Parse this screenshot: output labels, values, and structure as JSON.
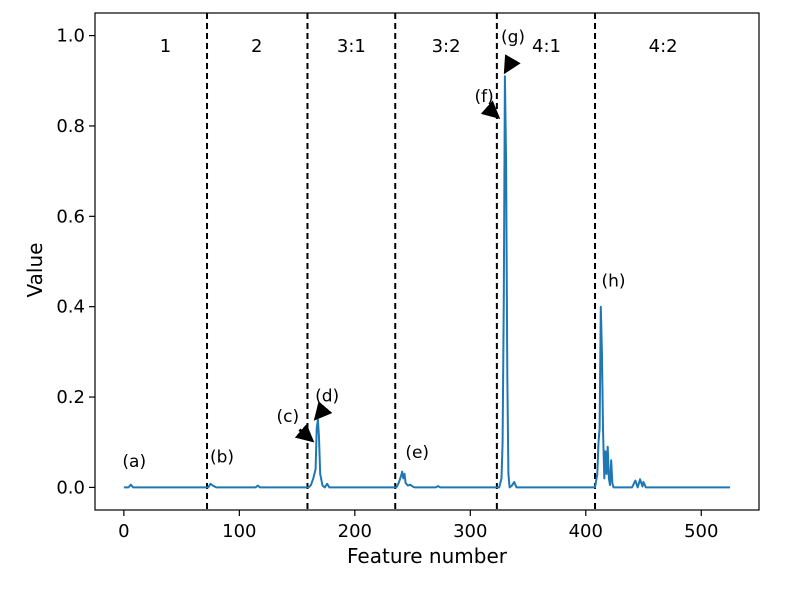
{
  "chart_data": {
    "type": "line",
    "title": "",
    "xlabel": "Feature number",
    "ylabel": "Value",
    "xlim": [
      -25,
      550
    ],
    "ylim": [
      -0.05,
      1.05
    ],
    "x_ticks": [
      0,
      100,
      200,
      300,
      400,
      500
    ],
    "x_tick_labels": [
      "0",
      "100",
      "200",
      "300",
      "400",
      "500"
    ],
    "y_ticks": [
      0.0,
      0.2,
      0.4,
      0.6,
      0.8,
      1.0
    ],
    "y_tick_labels": [
      "0.0",
      "0.2",
      "0.4",
      "0.6",
      "0.8",
      "1.0"
    ],
    "grid": false,
    "series": [
      {
        "color": "#1f77b4",
        "x": [
          0,
          4,
          6,
          8,
          10,
          60,
          70,
          73,
          75,
          77,
          80,
          110,
          114,
          116,
          118,
          150,
          158,
          160,
          162,
          164,
          166,
          167,
          168,
          169,
          170,
          172,
          174,
          176,
          178,
          230,
          236,
          238,
          240,
          241,
          242,
          243,
          244,
          246,
          248,
          250,
          252,
          254,
          262,
          270,
          272,
          274,
          300,
          322,
          325,
          327,
          328,
          329,
          330,
          331,
          332,
          333,
          334,
          336,
          338,
          340,
          342,
          350,
          395,
          405,
          408,
          410,
          411,
          412,
          413,
          414,
          415,
          416,
          417,
          418,
          419,
          420,
          421,
          422,
          423,
          424,
          425,
          430,
          440,
          443,
          445,
          447,
          449,
          450,
          452,
          460,
          525
        ],
        "values": [
          0,
          0,
          0.006,
          0,
          0,
          0,
          0,
          0,
          0.008,
          0.004,
          0,
          0,
          0,
          0.004,
          0,
          0,
          0,
          0,
          0.005,
          0.02,
          0.04,
          0.13,
          0.15,
          0.11,
          0.03,
          0.004,
          0,
          0.008,
          0,
          0,
          0,
          0.01,
          0.025,
          0.035,
          0.02,
          0.03,
          0.01,
          0.004,
          0.006,
          0.002,
          0,
          0,
          0,
          0,
          0.003,
          0,
          0,
          0,
          0,
          0.02,
          0.1,
          0.42,
          0.91,
          0.72,
          0.25,
          0.03,
          0,
          0.004,
          0.012,
          0,
          0,
          0,
          0,
          0,
          0,
          0.03,
          0.1,
          0.13,
          0.4,
          0.3,
          0.12,
          0.02,
          0.08,
          0.03,
          0.09,
          0.02,
          0.005,
          0.06,
          0.01,
          0,
          0,
          0,
          0,
          0.015,
          0,
          0.018,
          0.002,
          0.012,
          0,
          0,
          0
        ]
      }
    ],
    "vlines": [
      72,
      159,
      235,
      323,
      408
    ],
    "region_labels": [
      {
        "text": "1",
        "x": 36
      },
      {
        "text": "2",
        "x": 115
      },
      {
        "text": "3:1",
        "x": 197
      },
      {
        "text": "3:2",
        "x": 279
      },
      {
        "text": "4:1",
        "x": 366
      },
      {
        "text": "4:2",
        "x": 467
      }
    ],
    "annotations": [
      {
        "text": "(a)",
        "x": 9,
        "y": 0.045
      },
      {
        "text": "(b)",
        "x": 85,
        "y": 0.055
      },
      {
        "text": "(c)",
        "x": 142,
        "y": 0.145,
        "arrow_from": [
          152,
          0.128
        ],
        "arrow_to": [
          162,
          0.106
        ]
      },
      {
        "text": "(d)",
        "x": 176,
        "y": 0.19,
        "arrow_from": [
          172,
          0.17
        ],
        "arrow_to": [
          167,
          0.155
        ]
      },
      {
        "text": "(e)",
        "x": 254,
        "y": 0.065
      },
      {
        "text": "(f)",
        "x": 312,
        "y": 0.853,
        "arrow_from": [
          315,
          0.84
        ],
        "arrow_to": [
          323,
          0.822
        ]
      },
      {
        "text": "(g)",
        "x": 337,
        "y": 0.985,
        "arrow_from": [
          336,
          0.945
        ],
        "arrow_to": [
          331,
          0.923
        ]
      },
      {
        "text": "(h)",
        "x": 424,
        "y": 0.445
      }
    ]
  }
}
